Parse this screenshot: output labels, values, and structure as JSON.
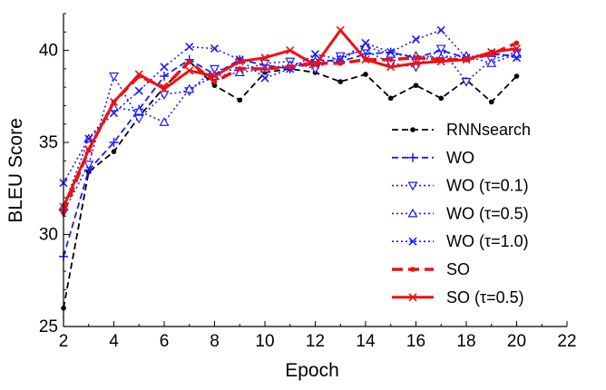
{
  "chart_data": {
    "type": "line",
    "title": "",
    "xlabel": "Epoch",
    "ylabel": "BLEU Score",
    "xlim": [
      2,
      22
    ],
    "ylim": [
      25,
      42
    ],
    "xticks": [
      2,
      4,
      6,
      8,
      10,
      12,
      14,
      16,
      18,
      20,
      22
    ],
    "yticks": [
      25,
      30,
      35,
      40
    ],
    "grid": false,
    "legend_position": "lower-right",
    "x": [
      2,
      3,
      4,
      5,
      6,
      7,
      8,
      9,
      10,
      11,
      12,
      13,
      14,
      15,
      16,
      17,
      18,
      19,
      20
    ],
    "series": [
      {
        "name": "RNNsearch",
        "color": "#000000",
        "line": "dashed",
        "marker": "dot",
        "values": [
          26.0,
          33.4,
          34.5,
          36.4,
          38.0,
          39.4,
          38.1,
          37.3,
          38.8,
          39.0,
          38.8,
          38.3,
          38.7,
          37.4,
          38.1,
          37.4,
          38.4,
          37.2,
          38.6
        ]
      },
      {
        "name": "WO",
        "color": "#1a1aff",
        "line": "dashed",
        "marker": "plus",
        "values": [
          28.8,
          33.5,
          35.0,
          36.8,
          38.6,
          39.5,
          38.7,
          39.5,
          39.2,
          39.0,
          39.5,
          39.4,
          39.8,
          39.9,
          39.6,
          40.0,
          39.6,
          39.8,
          39.7
        ]
      },
      {
        "name": "WO (τ=0.1)",
        "color": "#1a1aff",
        "line": "dotted",
        "marker": "triangle-down",
        "values": [
          31.2,
          33.8,
          38.6,
          36.3,
          37.6,
          37.8,
          39.0,
          38.9,
          39.3,
          39.4,
          39.0,
          39.7,
          40.0,
          39.3,
          39.1,
          40.1,
          38.3,
          39.5,
          39.9
        ]
      },
      {
        "name": "WO (τ=0.5)",
        "color": "#1a1aff",
        "line": "dotted",
        "marker": "triangle-up",
        "values": [
          31.5,
          35.2,
          36.9,
          36.7,
          36.1,
          37.9,
          38.6,
          38.8,
          39.0,
          39.2,
          39.4,
          39.5,
          40.2,
          39.8,
          39.7,
          39.6,
          39.7,
          39.3,
          39.8
        ]
      },
      {
        "name": "WO (τ=1.0)",
        "color": "#1a1aff",
        "line": "dotted",
        "marker": "x",
        "values": [
          32.8,
          35.2,
          36.6,
          37.8,
          39.1,
          40.2,
          40.1,
          39.5,
          38.5,
          39.0,
          39.8,
          39.5,
          40.4,
          39.9,
          40.6,
          41.1,
          39.6,
          39.9,
          39.6
        ]
      },
      {
        "name": "SO",
        "color": "#ee1111",
        "line": "dashed-thick",
        "marker": "dot",
        "values": [
          31.2,
          34.6,
          37.2,
          38.6,
          38.0,
          39.4,
          38.3,
          39.0,
          39.0,
          39.1,
          39.3,
          39.3,
          39.5,
          39.5,
          39.6,
          39.5,
          39.5,
          39.8,
          40.4
        ]
      },
      {
        "name": "SO (τ=0.5)",
        "color": "#ee1111",
        "line": "solid-thick",
        "marker": "x",
        "values": [
          31.5,
          34.6,
          37.2,
          38.7,
          37.9,
          38.9,
          38.6,
          39.4,
          39.6,
          40.0,
          39.2,
          41.1,
          39.5,
          39.1,
          39.3,
          39.4,
          39.5,
          39.9,
          40.1
        ]
      }
    ]
  }
}
